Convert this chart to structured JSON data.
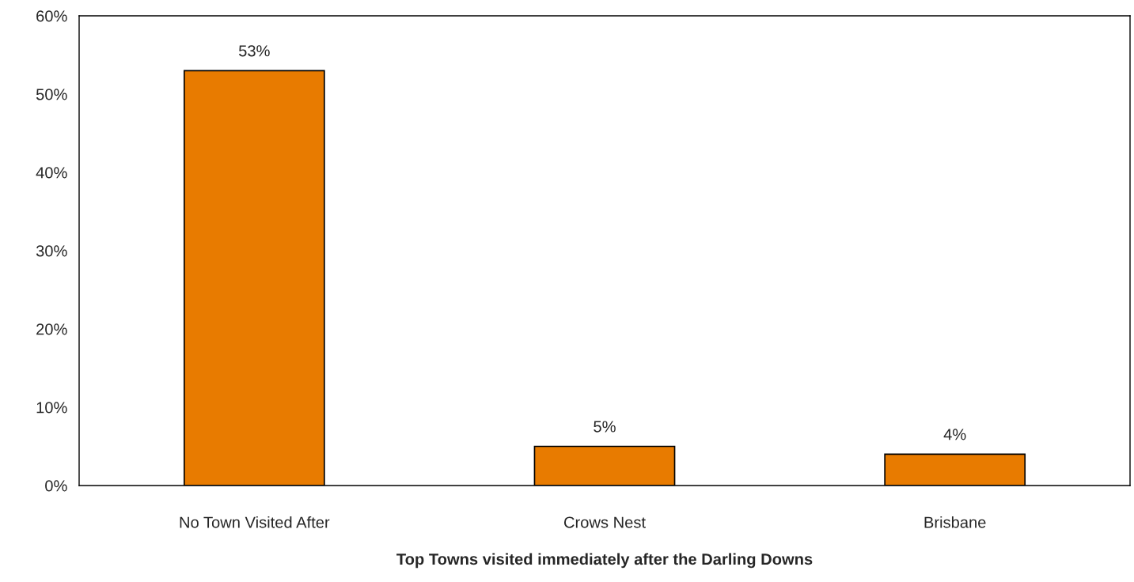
{
  "chart_data": {
    "type": "bar",
    "xlabel": "Top Towns visited immediately after the Darling Downs",
    "categories": [
      "No Town Visited After",
      "Crows Nest",
      "Brisbane"
    ],
    "values": [
      53,
      5,
      4
    ],
    "value_labels": [
      "53%",
      "5%",
      "4%"
    ],
    "color": "#e87b00",
    "ylim": [
      0,
      60
    ],
    "yticks": [
      {
        "value": 0,
        "label": "0%"
      },
      {
        "value": 10,
        "label": "10%"
      },
      {
        "value": 20,
        "label": "20%"
      },
      {
        "value": 30,
        "label": "30%"
      },
      {
        "value": 40,
        "label": "40%"
      },
      {
        "value": 50,
        "label": "50%"
      },
      {
        "value": 60,
        "label": "60%"
      }
    ],
    "grid": false,
    "legend": false
  }
}
